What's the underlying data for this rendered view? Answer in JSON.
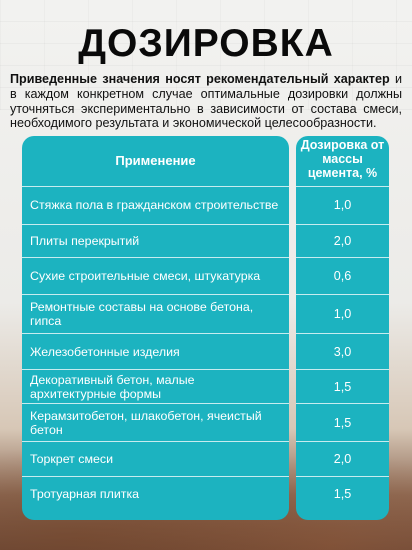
{
  "title": "ДОЗИРОВКА",
  "intro": {
    "bold": "Приведенные значения носят рекомендательный характер",
    "rest": " и в каждом конкретном случае оптимальные дозировки должны уточняться экспериментально в зависимости от состава смеси, необходимого результата и экономической целесообразности."
  },
  "table": {
    "col_application": "Применение",
    "col_dosage": "Дозировка от массы цемента, %",
    "rows": [
      {
        "application": "Стяжка пола в гражданском строительстве",
        "dosage": "1,0"
      },
      {
        "application": "Плиты перекрытий",
        "dosage": "2,0"
      },
      {
        "application": "Сухие строительные смеси, штукатурка",
        "dosage": "0,6"
      },
      {
        "application": "Ремонтные составы на основе бетона, гипса",
        "dosage": "1,0"
      },
      {
        "application": "Железобетонные изделия",
        "dosage": "3,0"
      },
      {
        "application": "Декоративный бетон, малые архитектурные формы",
        "dosage": "1,5"
      },
      {
        "application": "Керамзитобетон, шлакобетон, ячеистый бетон",
        "dosage": "1,5"
      },
      {
        "application": "Торкрет смеси",
        "dosage": "2,0"
      },
      {
        "application": "Тротуарная плитка",
        "dosage": "1,5"
      }
    ]
  },
  "colors": {
    "accent": "#1cb3c0"
  }
}
